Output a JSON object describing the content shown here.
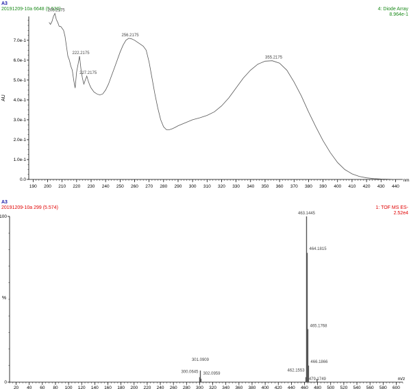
{
  "uv_panel": {
    "sample": "A3",
    "run_info": "20191209-10a 6648 (5.530)",
    "detector": "4: Diode Array",
    "scale": "8.964e-1"
  },
  "ms_panel": {
    "sample": "A3",
    "run_info": "20191209-10a 299 (5.574)",
    "detector": "1: TOF MS ES-",
    "scale": "2.52e4"
  },
  "colors": {
    "uv_header": "#1a8a1a",
    "ms_header": "#e00000",
    "sample": "#1a1aa8",
    "trace": "#555555"
  },
  "chart_data": [
    {
      "type": "line",
      "ylabel": "AU",
      "xlabel": "nm",
      "xlim": [
        187,
        445
      ],
      "ylim": [
        0,
        0.82
      ],
      "x_ticks": [
        190,
        200,
        210,
        220,
        230,
        240,
        250,
        260,
        270,
        280,
        290,
        300,
        310,
        320,
        330,
        340,
        350,
        360,
        370,
        380,
        390,
        400,
        410,
        420,
        430,
        440
      ],
      "y_ticks": [
        {
          "v": 0.0,
          "label": "0.0"
        },
        {
          "v": 0.1,
          "label": "1.0e-1"
        },
        {
          "v": 0.2,
          "label": "2.0e-1"
        },
        {
          "v": 0.3,
          "label": "3.0e-1"
        },
        {
          "v": 0.4,
          "label": "4.0e-1"
        },
        {
          "v": 0.5,
          "label": "5.0e-1"
        },
        {
          "v": 0.6,
          "label": "6.0e-1"
        },
        {
          "v": 0.7,
          "label": "7.0e-1"
        }
      ],
      "series": [
        {
          "x": [
            201,
            202,
            203,
            204,
            205,
            206,
            207,
            208,
            209,
            210,
            211,
            212,
            213,
            214,
            215,
            216,
            217,
            218,
            219,
            220,
            221,
            222,
            223,
            224,
            225,
            226,
            227,
            228,
            229,
            230,
            232,
            234,
            236,
            238,
            240,
            242,
            244,
            246,
            248,
            250,
            252,
            254,
            256,
            258,
            260,
            262,
            264,
            266,
            268,
            270,
            272,
            274,
            276,
            278,
            280,
            282,
            284,
            286,
            288,
            290,
            295,
            300,
            305,
            310,
            315,
            320,
            325,
            330,
            335,
            340,
            345,
            350,
            355,
            360,
            365,
            370,
            375,
            380,
            385,
            390,
            395,
            400,
            405,
            410,
            415,
            420,
            425,
            430,
            435,
            440
          ],
          "y": [
            0.79,
            0.78,
            0.795,
            0.82,
            0.835,
            0.805,
            0.79,
            0.77,
            0.77,
            0.76,
            0.75,
            0.72,
            0.67,
            0.62,
            0.6,
            0.57,
            0.55,
            0.5,
            0.46,
            0.54,
            0.58,
            0.62,
            0.555,
            0.51,
            0.48,
            0.5,
            0.52,
            0.495,
            0.475,
            0.46,
            0.44,
            0.43,
            0.425,
            0.43,
            0.45,
            0.48,
            0.52,
            0.56,
            0.6,
            0.64,
            0.675,
            0.7,
            0.71,
            0.707,
            0.7,
            0.69,
            0.68,
            0.67,
            0.65,
            0.59,
            0.51,
            0.43,
            0.36,
            0.3,
            0.265,
            0.25,
            0.25,
            0.255,
            0.262,
            0.27,
            0.285,
            0.3,
            0.31,
            0.322,
            0.34,
            0.37,
            0.41,
            0.46,
            0.51,
            0.55,
            0.58,
            0.595,
            0.597,
            0.585,
            0.55,
            0.49,
            0.42,
            0.34,
            0.265,
            0.195,
            0.135,
            0.085,
            0.05,
            0.028,
            0.015,
            0.008,
            0.004,
            0.002,
            0.001,
            0.0
          ]
        }
      ],
      "annotations": [
        {
          "x": 205,
          "y": 0.835,
          "label": "205.2175"
        },
        {
          "x": 222,
          "y": 0.62,
          "label": "222.2175"
        },
        {
          "x": 227,
          "y": 0.52,
          "label": "227.2175"
        },
        {
          "x": 256,
          "y": 0.71,
          "label": "256.2175"
        },
        {
          "x": 355,
          "y": 0.597,
          "label": "355.2175"
        }
      ]
    },
    {
      "type": "bar",
      "ylabel": "%",
      "xlabel": "m/z",
      "xlim": [
        10,
        610
      ],
      "ylim": [
        0,
        100
      ],
      "x_ticks": [
        20,
        40,
        60,
        80,
        100,
        120,
        140,
        160,
        180,
        200,
        220,
        240,
        260,
        280,
        300,
        320,
        340,
        360,
        380,
        400,
        420,
        440,
        460,
        480,
        500,
        520,
        540,
        560,
        580,
        600
      ],
      "y_ticks": [
        {
          "v": 0,
          "label": "0"
        },
        {
          "v": 100,
          "label": "100"
        }
      ],
      "peaks": [
        {
          "mz": 300.0645,
          "intensity": 3,
          "label": "300.0645"
        },
        {
          "mz": 301.0909,
          "intensity": 7,
          "label": "301.0909"
        },
        {
          "mz": 302.0959,
          "intensity": 2,
          "label": "302.0959"
        },
        {
          "mz": 462.1553,
          "intensity": 3,
          "label": "462.1553"
        },
        {
          "mz": 463.1445,
          "intensity": 100,
          "label": "463.1445"
        },
        {
          "mz": 464.1815,
          "intensity": 78,
          "label": "464.1815"
        },
        {
          "mz": 465.1768,
          "intensity": 32,
          "label": "465.1768"
        },
        {
          "mz": 466.1866,
          "intensity": 10,
          "label": "466.1866"
        },
        {
          "mz": 479.1749,
          "intensity": 2,
          "label": "479.1749"
        }
      ]
    }
  ]
}
